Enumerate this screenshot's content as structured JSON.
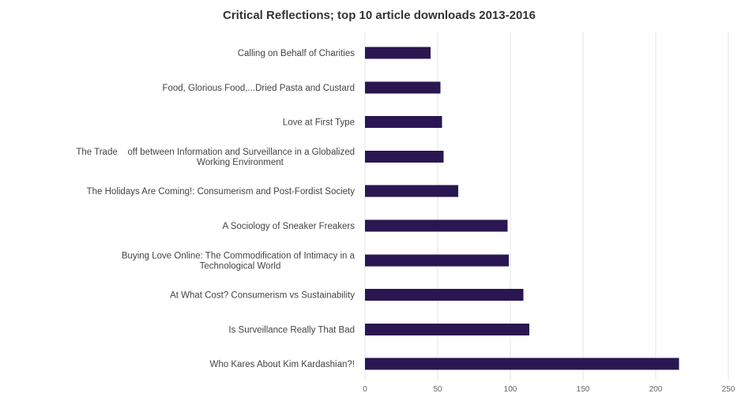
{
  "chart_data": {
    "type": "bar",
    "orientation": "horizontal",
    "title": "Critical Reflections; top 10 article downloads 2013-2016",
    "xlabel": "",
    "ylabel": "",
    "categories": [
      [
        "Calling on Behalf of Charities"
      ],
      [
        "Food, Glorious Food,...Dried Pasta and Custard"
      ],
      [
        "Love at First Type"
      ],
      [
        "The Trade    off between Information and Surveillance in a Globalized",
        "Working Environment"
      ],
      [
        "The Holidays Are Coming!: Consumerism and Post-Fordist Society"
      ],
      [
        "A Sociology of Sneaker Freakers"
      ],
      [
        "Buying Love Online: The Commodification of Intimacy in a",
        "Technological World"
      ],
      [
        "At What Cost? Consumerism vs Sustainability"
      ],
      [
        "Is Surveillance Really That Bad"
      ],
      [
        "Who Kares About Kim Kardashian?!"
      ]
    ],
    "values": [
      45,
      52,
      53,
      54,
      64,
      98,
      99,
      109,
      113,
      216
    ],
    "xlim": [
      0,
      250
    ],
    "xticks": [
      0,
      50,
      100,
      150,
      200,
      250
    ],
    "grid": true,
    "legend": "none",
    "bar_color": "#2a1650",
    "grid_color": "#e6e6e6"
  }
}
